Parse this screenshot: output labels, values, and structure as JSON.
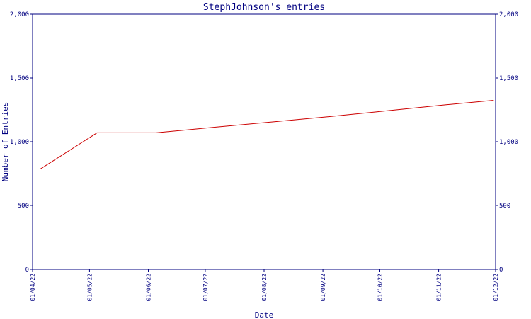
{
  "colors": {
    "axis": "#000080",
    "text": "#000080",
    "series": "#cc0000",
    "background": "#ffffff"
  },
  "chart_data": {
    "type": "line",
    "title": "StephJohnson's entries",
    "xlabel": "Date",
    "ylabel": "Number of Entries",
    "ylim": [
      0,
      2000
    ],
    "y_ticks": [
      0,
      500,
      1000,
      1500,
      2000
    ],
    "y_tick_labels": [
      "0",
      "500",
      "1,000",
      "1,500",
      "2,000"
    ],
    "x_ticks": [
      "01/04/22",
      "01/05/22",
      "01/06/22",
      "01/07/22",
      "01/08/22",
      "01/09/22",
      "01/10/22",
      "01/11/22",
      "01/12/22"
    ],
    "grid": false,
    "series": [
      {
        "x": [
          "2022-04-05",
          "2022-05-05",
          "2022-06-05",
          "2022-07-05",
          "2022-08-05",
          "2022-09-05",
          "2022-10-05",
          "2022-11-05",
          "2022-11-30"
        ],
        "values": [
          785,
          1070,
          1070,
          1112,
          1155,
          1198,
          1243,
          1290,
          1325
        ]
      }
    ]
  }
}
